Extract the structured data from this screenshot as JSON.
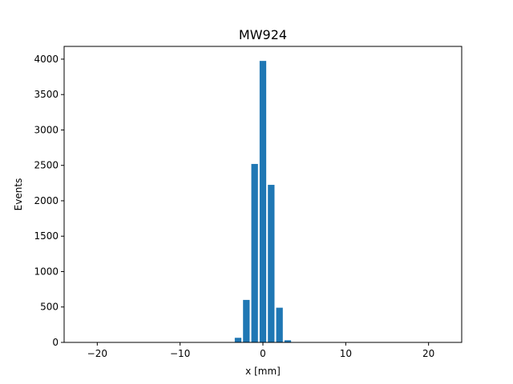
{
  "chart_data": {
    "type": "bar",
    "title": "MW924",
    "xlabel": "x [mm]",
    "ylabel": "Events",
    "xlim": [
      -24,
      24
    ],
    "ylim": [
      0,
      4180
    ],
    "xticks": [
      -20,
      -10,
      0,
      10,
      20
    ],
    "xtick_labels": [
      "−20",
      "−10",
      "0",
      "10",
      "20"
    ],
    "yticks": [
      0,
      500,
      1000,
      1500,
      2000,
      2500,
      3000,
      3500,
      4000
    ],
    "ytick_labels": [
      "0",
      "500",
      "1000",
      "1500",
      "2000",
      "2500",
      "3000",
      "3500",
      "4000"
    ],
    "bar_width": 0.8,
    "grid": false,
    "color": "#1f77b4",
    "x": [
      -3,
      -2,
      -1,
      0,
      1,
      2,
      3
    ],
    "values": [
      65,
      600,
      2520,
      3975,
      2225,
      490,
      30
    ]
  }
}
